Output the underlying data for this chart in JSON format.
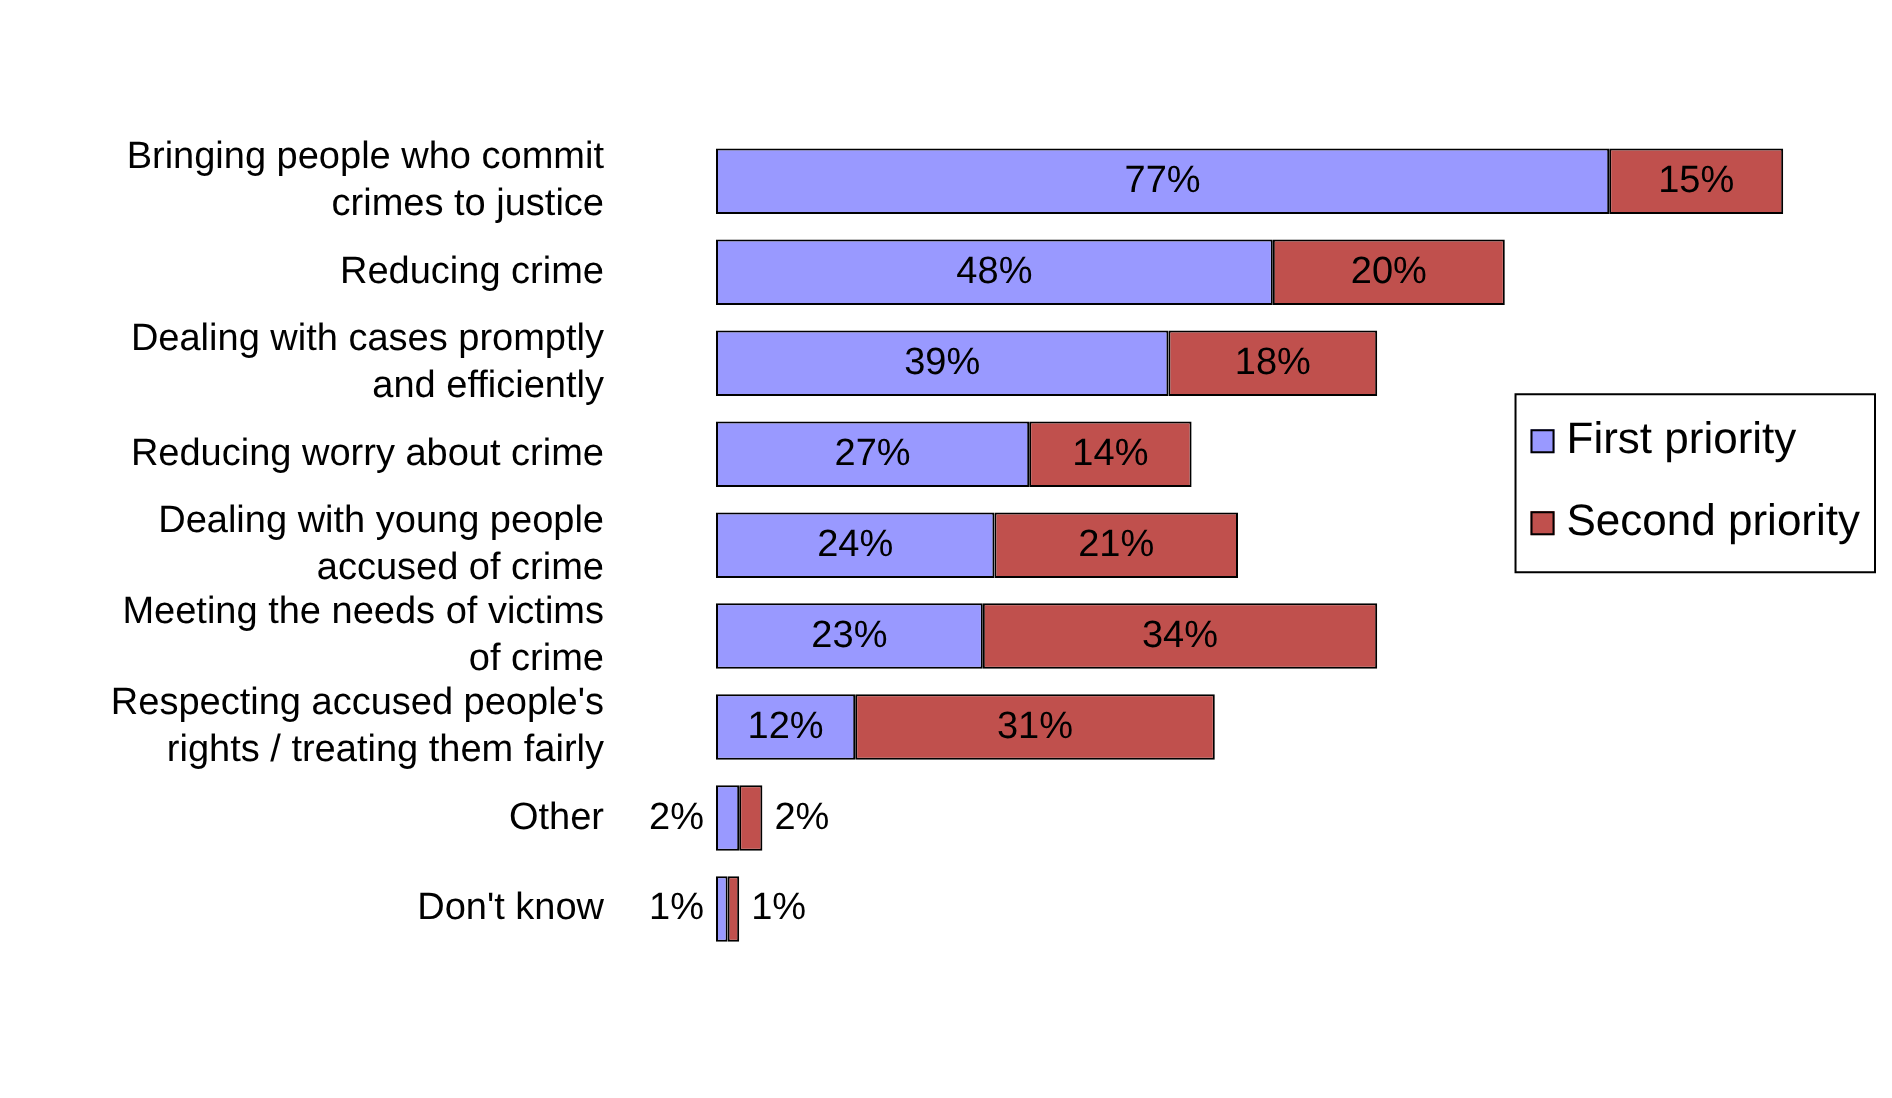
{
  "chart_data": {
    "type": "bar",
    "orientation": "horizontal",
    "stacked": true,
    "legend": "right",
    "categories": [
      "Bringing people who commit crimes to justice",
      "Reducing crime",
      "Dealing with cases promptly and efficiently",
      "Reducing worry about crime",
      "Dealing with young people accused of crime",
      "Meeting the needs of victims of crime",
      "Respecting accused people's rights / treating them fairly",
      "Other",
      "Don't know"
    ],
    "series": [
      {
        "name": "First priority",
        "color": "#9999ff",
        "values": [
          77,
          48,
          39,
          27,
          24,
          23,
          12,
          2,
          1
        ],
        "value_labels": [
          "77%",
          "48%",
          "39%",
          "27%",
          "24%",
          "23%",
          "12%",
          "2%",
          "1%"
        ]
      },
      {
        "name": "Second priority",
        "color": "#c0504d",
        "values": [
          15,
          20,
          18,
          14,
          21,
          34,
          31,
          2,
          1
        ],
        "value_labels": [
          "15%",
          "20%",
          "18%",
          "14%",
          "21%",
          "34%",
          "31%",
          "2%",
          "1%"
        ]
      }
    ]
  }
}
